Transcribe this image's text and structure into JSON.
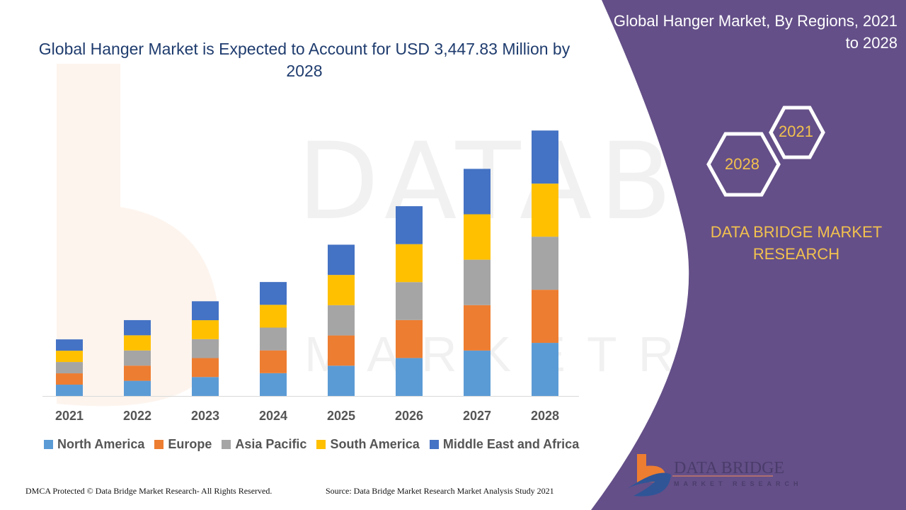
{
  "title": "Global Hanger Market is Expected to Account for USD 3,447.83 Million by 2028",
  "side_panel": {
    "title": "Global Hanger Market, By Regions, 2021 to 2028",
    "hex_start": "2021",
    "hex_end": "2028",
    "brand": "DATA BRIDGE MARKET RESEARCH",
    "logo_text": "DATA BRIDGE",
    "logo_subtext": "MARKET RESEARCH",
    "panel_color": "#644f88"
  },
  "footer": {
    "left": "DMCA Protected © Data Bridge Market Research- All Rights Reserved.",
    "right": "Source: Data Bridge Market Research Market Analysis Study 2021"
  },
  "chart_data": {
    "type": "bar",
    "stacked": true,
    "title": "Global Hanger Market is Expected to Account for USD 3,447.83 Million by 2028",
    "xlabel": "",
    "ylabel": "",
    "unit": "USD Million (estimated, scaled to 2028 total)",
    "ylim": [
      0,
      3800
    ],
    "grid": false,
    "legend": "bottom",
    "categories": [
      "2021",
      "2022",
      "2023",
      "2024",
      "2025",
      "2026",
      "2027",
      "2028"
    ],
    "series": [
      {
        "name": "North America",
        "color": "#5b9bd5",
        "values": [
          147,
          197,
          246,
          296,
          393,
          493,
          590,
          689.6
        ]
      },
      {
        "name": "Europe",
        "color": "#ed7d31",
        "values": [
          147,
          197,
          246,
          296,
          393,
          493,
          590,
          689.6
        ]
      },
      {
        "name": "Asia Pacific",
        "color": "#a5a5a5",
        "values": [
          147,
          197,
          246,
          296,
          393,
          493,
          590,
          689.6
        ]
      },
      {
        "name": "South America",
        "color": "#ffc000",
        "values": [
          147,
          197,
          246,
          296,
          393,
          493,
          590,
          689.6
        ]
      },
      {
        "name": "Middle East and Africa",
        "color": "#4472c4",
        "values": [
          147,
          197,
          246,
          296,
          393,
          493,
          590,
          689.6
        ]
      }
    ]
  }
}
